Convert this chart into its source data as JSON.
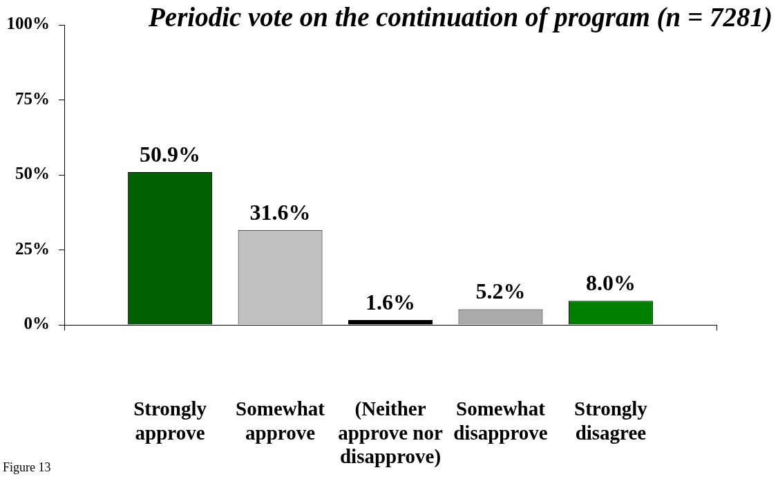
{
  "chart_data": {
    "type": "bar",
    "title": "Periodic vote on the continuation of program (n = 7281)",
    "categories": [
      "Strongly approve",
      "Somewhat approve",
      "(Neither approve nor disapprove)",
      "Somewhat disapprove",
      "Strongly disagree"
    ],
    "values": [
      50.9,
      31.6,
      1.6,
      5.2,
      8.0
    ],
    "colors": [
      "#006000",
      "#c0c0c0",
      "#000000",
      "#aaaaaa",
      "#008000"
    ],
    "value_labels": [
      "50.9%",
      "31.6%",
      "1.6%",
      "5.2%",
      "8.0%"
    ],
    "ylim": [
      0,
      100
    ],
    "yticks": [
      {
        "value": 0,
        "label": "0%"
      },
      {
        "value": 25,
        "label": "25%"
      },
      {
        "value": 50,
        "label": "50%"
      },
      {
        "value": 75,
        "label": "75%"
      },
      {
        "value": 100,
        "label": "100%"
      }
    ],
    "annotations": [
      "Figure 13"
    ]
  }
}
